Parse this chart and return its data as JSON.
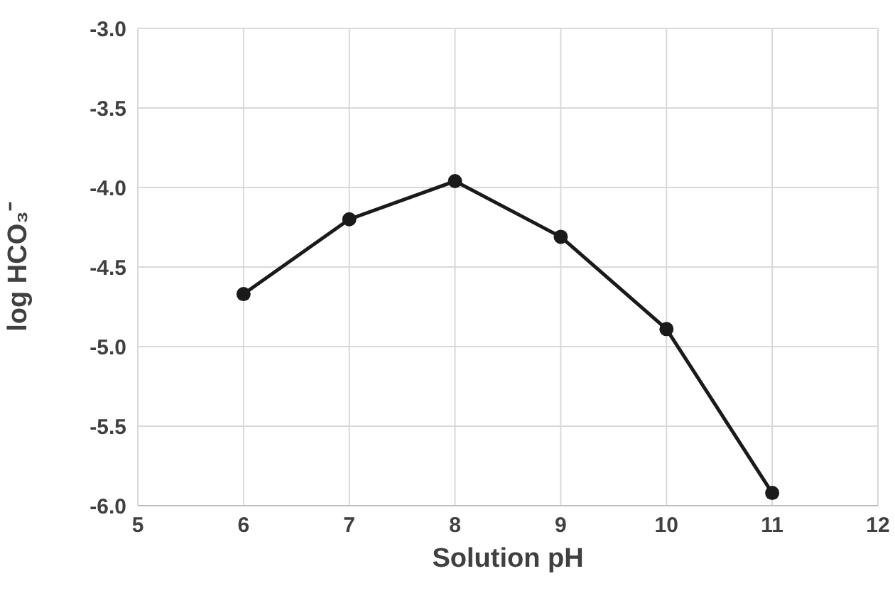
{
  "chart_data": {
    "type": "line",
    "xlabel": "Solution pH",
    "ylabel": "log HCO₃⁻",
    "x": [
      6,
      7,
      8,
      9,
      10,
      11
    ],
    "series": [
      {
        "color": "#1a1a1a",
        "values": [
          -4.67,
          -4.2,
          -3.96,
          -4.31,
          -4.89,
          -5.92
        ]
      }
    ],
    "xlim": [
      5,
      12
    ],
    "xticks": [
      5,
      6,
      7,
      8,
      9,
      10,
      11,
      12
    ],
    "ylim": [
      -6,
      -3
    ],
    "yticks": [
      {
        "value": -6,
        "label": "-6.0"
      },
      {
        "value": -5.5,
        "label": "-5.5"
      },
      {
        "value": -5,
        "label": "-5.0"
      },
      {
        "value": -4.5,
        "label": "-4.5"
      },
      {
        "value": -4,
        "label": "-4.0"
      },
      {
        "value": -3.5,
        "label": "-3.5"
      },
      {
        "value": -3,
        "label": "-3.0"
      }
    ],
    "grid": true,
    "marker": "circle",
    "line_style": "solid",
    "legend": false
  }
}
